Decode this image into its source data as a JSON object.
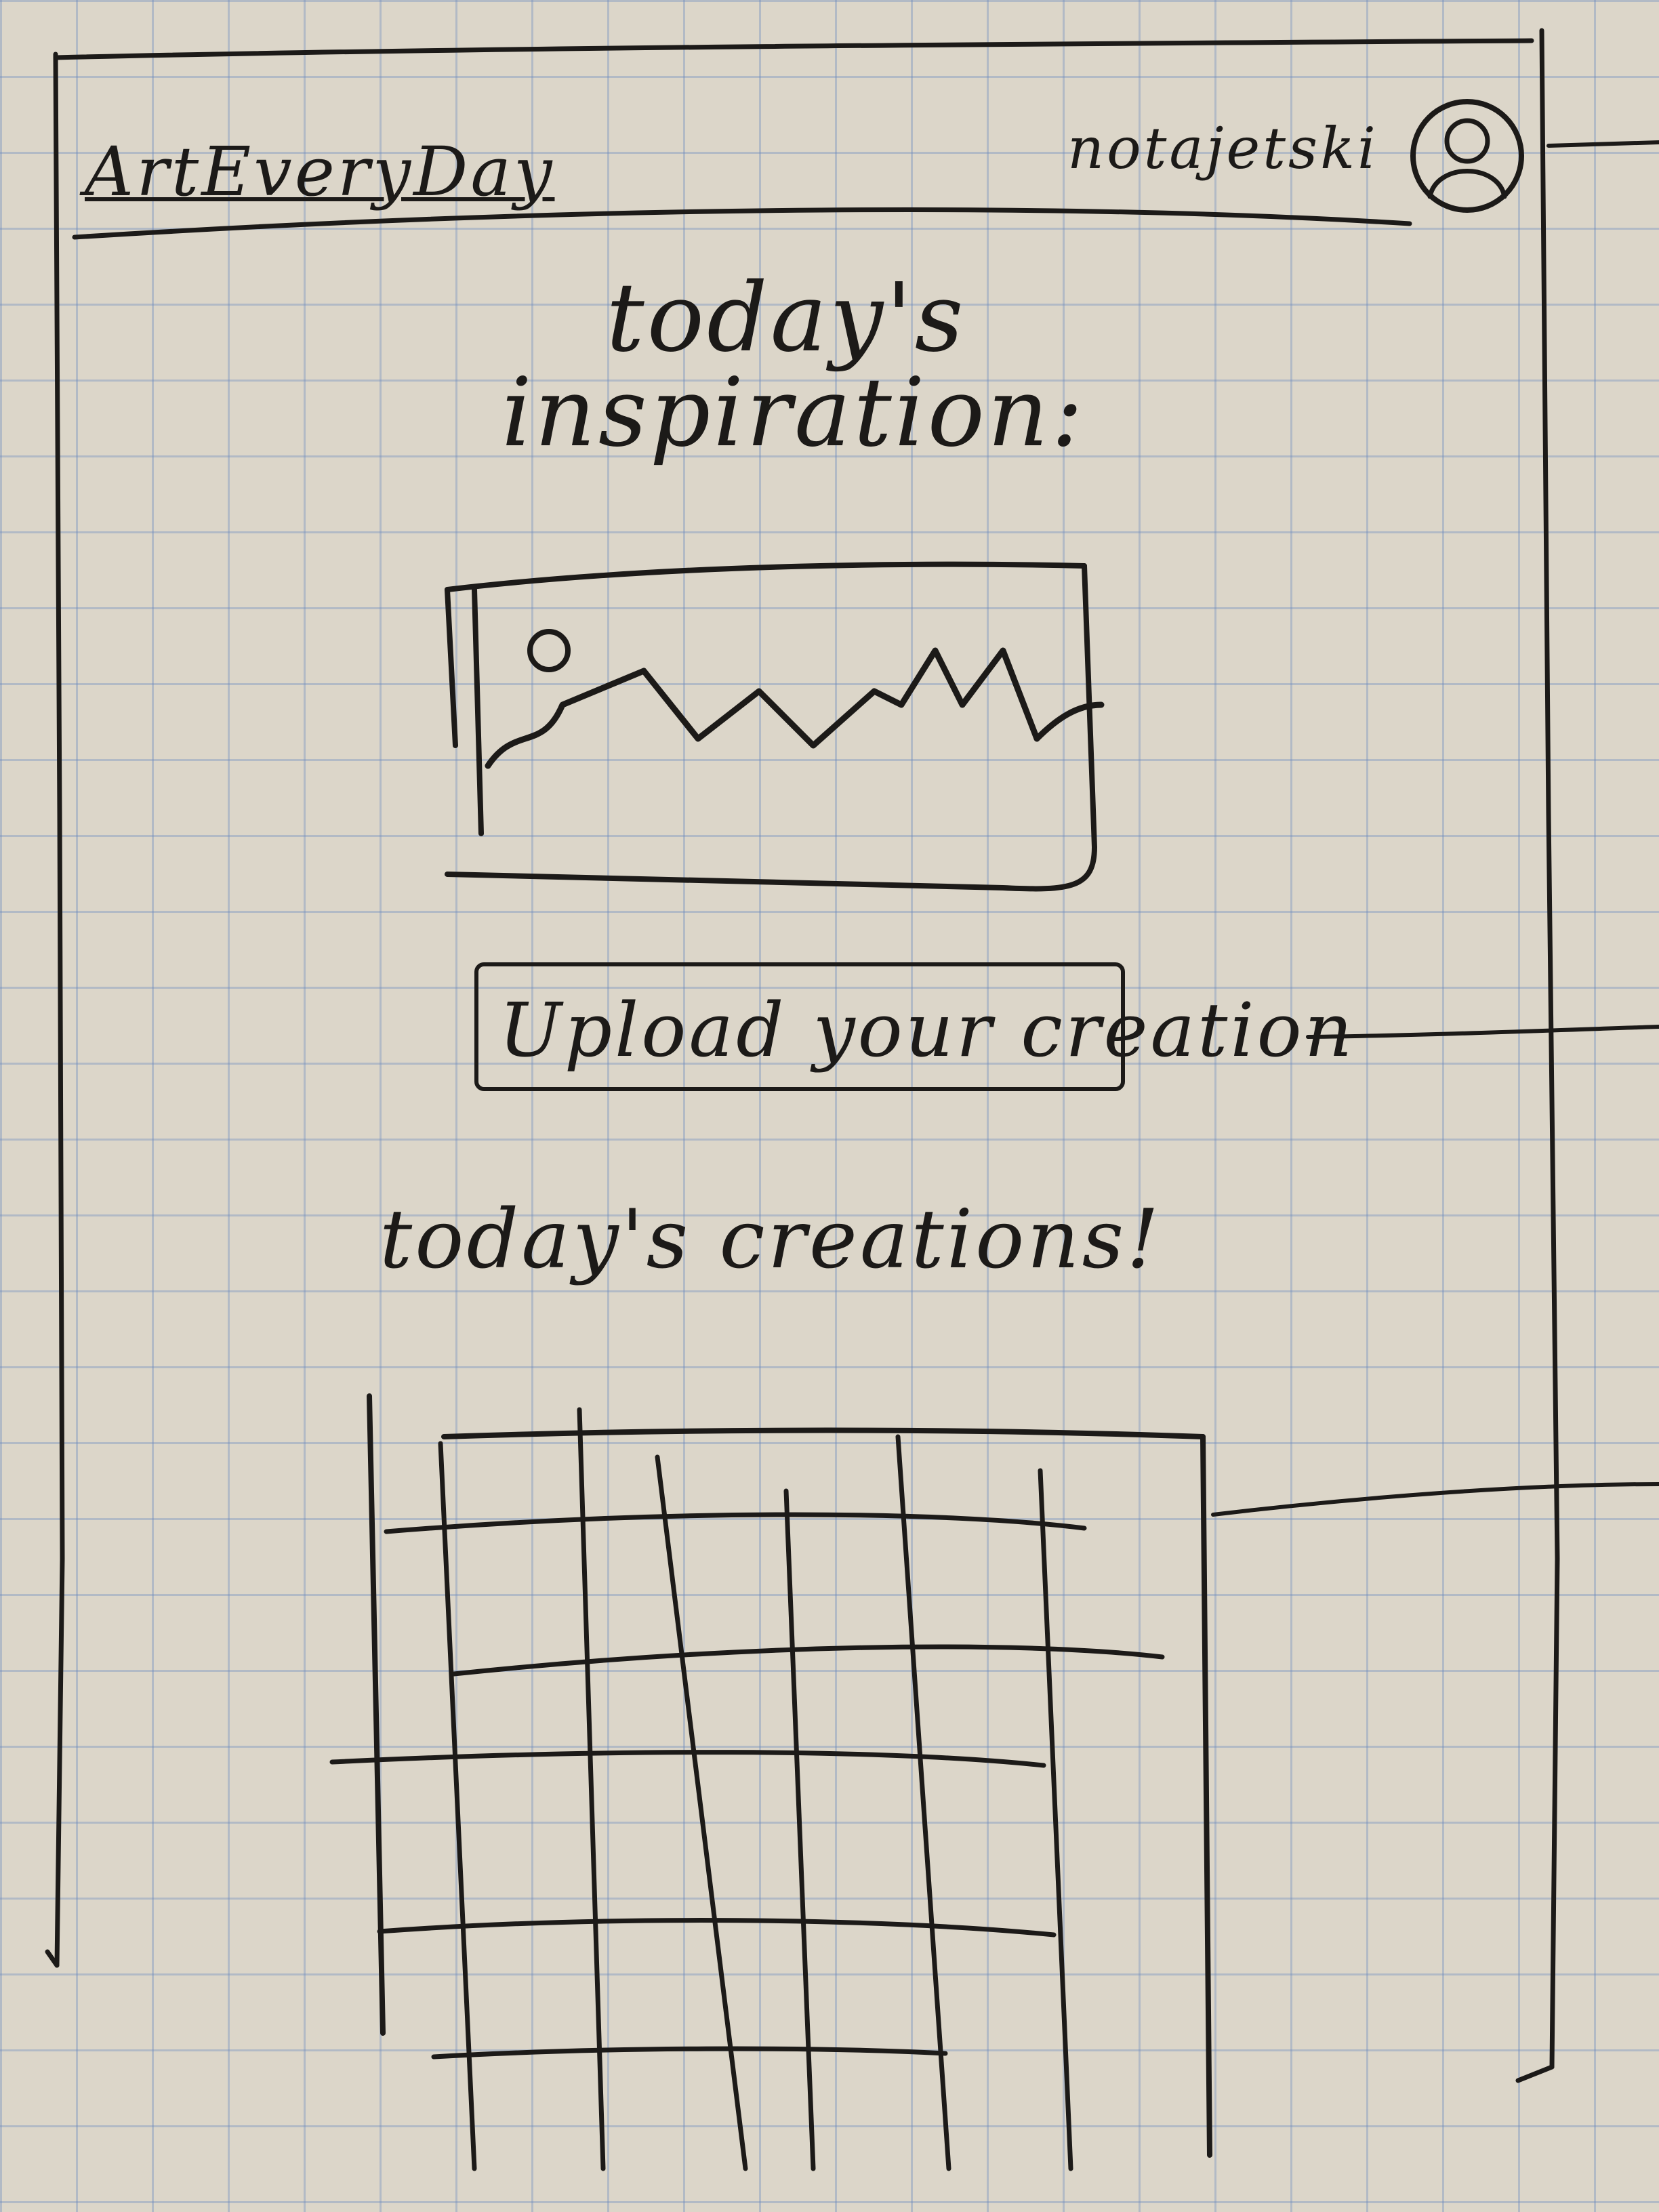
{
  "header": {
    "app_title": "ArtEveryDay",
    "username": "notajetski",
    "avatar_icon": "user-avatar-icon"
  },
  "inspiration": {
    "title": "today's inspiration:",
    "image_icon": "landscape-image-icon"
  },
  "upload": {
    "label": "Upload your creation"
  },
  "creations": {
    "title": "today's creations!",
    "grid_columns": 5,
    "grid_rows": 5
  },
  "colors": {
    "paper": "#dcd6c9",
    "grid_lines": "#6e8cbe",
    "ink": "#1c1a18"
  }
}
